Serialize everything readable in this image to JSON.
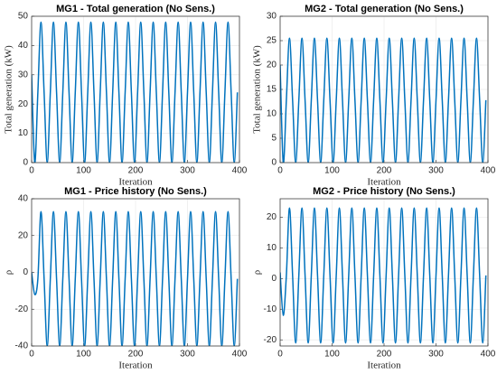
{
  "chart_data": [
    {
      "type": "line",
      "title": "MG1 - Total generation (No Sens.)",
      "x_label": "Iteration",
      "y_label": "Total generation (kW)",
      "xlim": [
        0,
        400
      ],
      "xticks": [
        0,
        100,
        200,
        300,
        400
      ],
      "ylim": [
        0,
        50
      ],
      "yticks": [
        0,
        10,
        20,
        30,
        40,
        50
      ],
      "grid": true,
      "x": [
        0,
        6,
        12,
        18,
        24,
        30,
        36,
        42,
        48,
        54,
        60,
        66,
        72,
        78,
        84,
        90,
        96,
        102,
        108,
        114,
        120,
        126,
        132,
        138,
        144,
        150,
        156,
        162,
        168,
        174,
        180,
        186,
        192,
        198,
        204,
        210,
        216,
        222,
        228,
        234,
        240,
        246,
        252,
        258,
        264,
        270,
        276,
        282,
        288,
        294,
        300,
        306,
        312,
        318,
        324,
        330,
        336,
        342,
        348,
        354,
        360,
        366,
        372,
        378,
        384,
        390,
        396
      ],
      "series": [
        {
          "name": "MG1",
          "color": "#0072bd",
          "values": [
            30,
            0,
            24,
            48,
            24,
            0,
            24,
            48,
            24,
            0,
            24,
            48,
            24,
            0,
            24,
            48,
            24,
            0,
            24,
            48,
            24,
            0,
            24,
            48,
            24,
            0,
            24,
            48,
            24,
            0,
            24,
            48,
            24,
            0,
            24,
            48,
            24,
            0,
            24,
            48,
            24,
            0,
            24,
            48,
            24,
            0,
            24,
            48,
            24,
            0,
            24,
            48,
            24,
            0,
            24,
            48,
            24,
            0,
            24,
            48,
            24,
            0,
            24,
            48,
            24,
            0,
            24
          ]
        }
      ]
    },
    {
      "type": "line",
      "title": "MG2 - Total generation (No Sens.)",
      "x_label": "Iteration",
      "y_label": "Total generation (kW)",
      "xlim": [
        0,
        400
      ],
      "xticks": [
        0,
        100,
        200,
        300,
        400
      ],
      "ylim": [
        0,
        30
      ],
      "yticks": [
        0,
        5,
        10,
        15,
        20,
        25,
        30
      ],
      "grid": true,
      "x": [
        0,
        6,
        12,
        18,
        24,
        30,
        36,
        42,
        48,
        54,
        60,
        66,
        72,
        78,
        84,
        90,
        96,
        102,
        108,
        114,
        120,
        126,
        132,
        138,
        144,
        150,
        156,
        162,
        168,
        174,
        180,
        186,
        192,
        198,
        204,
        210,
        216,
        222,
        228,
        234,
        240,
        246,
        252,
        258,
        264,
        270,
        276,
        282,
        288,
        294,
        300,
        306,
        312,
        318,
        324,
        330,
        336,
        342,
        348,
        354,
        360,
        366,
        372,
        378,
        384,
        390,
        396
      ],
      "series": [
        {
          "name": "MG2",
          "color": "#0072bd",
          "values": [
            20,
            0,
            12.8,
            25.5,
            12.8,
            0,
            12.8,
            25.5,
            12.8,
            0,
            12.8,
            25.5,
            12.8,
            0,
            12.8,
            25.5,
            12.8,
            0,
            12.8,
            25.5,
            12.8,
            0,
            12.8,
            25.5,
            12.8,
            0,
            12.8,
            25.5,
            12.8,
            0,
            12.8,
            25.5,
            12.8,
            0,
            12.8,
            25.5,
            12.8,
            0,
            12.8,
            25.5,
            12.8,
            0,
            12.8,
            25.5,
            12.8,
            0,
            12.8,
            25.5,
            12.8,
            0,
            12.8,
            25.5,
            12.8,
            0,
            12.8,
            25.5,
            12.8,
            0,
            12.8,
            25.5,
            12.8,
            0,
            12.8,
            25.5,
            12.8,
            0,
            12.8
          ]
        }
      ]
    },
    {
      "type": "line",
      "title": "MG1 - Price history (No Sens.)",
      "x_label": "Iteration",
      "y_label": "ρ",
      "xlim": [
        0,
        400
      ],
      "xticks": [
        0,
        100,
        200,
        300,
        400
      ],
      "ylim": [
        -40,
        40
      ],
      "yticks": [
        -40,
        -20,
        0,
        20,
        40
      ],
      "grid": true,
      "x": [
        0,
        6,
        12,
        18,
        24,
        30,
        36,
        42,
        48,
        54,
        60,
        66,
        72,
        78,
        84,
        90,
        96,
        102,
        108,
        114,
        120,
        126,
        132,
        138,
        144,
        150,
        156,
        162,
        168,
        174,
        180,
        186,
        192,
        198,
        204,
        210,
        216,
        222,
        228,
        234,
        240,
        246,
        252,
        258,
        264,
        270,
        276,
        282,
        288,
        294,
        300,
        306,
        312,
        318,
        324,
        330,
        336,
        342,
        348,
        354,
        360,
        366,
        372,
        378,
        384,
        390,
        396
      ],
      "series": [
        {
          "name": "MG1",
          "color": "#0072bd",
          "values": [
            0,
            -12,
            -3.5,
            33,
            -3.5,
            -40,
            -3.5,
            33,
            -3.5,
            -40,
            -3.5,
            33,
            -3.5,
            -40,
            -3.5,
            33,
            -3.5,
            -40,
            -3.5,
            33,
            -3.5,
            -40,
            -3.5,
            33,
            -3.5,
            -40,
            -3.5,
            33,
            -3.5,
            -40,
            -3.5,
            33,
            -3.5,
            -40,
            -3.5,
            33,
            -3.5,
            -40,
            -3.5,
            33,
            -3.5,
            -40,
            -3.5,
            33,
            -3.5,
            -40,
            -3.5,
            33,
            -3.5,
            -40,
            -3.5,
            33,
            -3.5,
            -40,
            -3.5,
            33,
            -3.5,
            -40,
            -3.5,
            33,
            -3.5,
            -40,
            -3.5,
            33,
            -3.5,
            -40,
            -3.5
          ]
        }
      ]
    },
    {
      "type": "line",
      "title": "MG2 - Price history (No Sens.)",
      "x_label": "Iteration",
      "y_label": "ρ",
      "xlim": [
        0,
        400
      ],
      "xticks": [
        0,
        100,
        200,
        300,
        400
      ],
      "ylim": [
        -22,
        26
      ],
      "yticks": [
        -20,
        -10,
        0,
        10,
        20
      ],
      "grid": true,
      "x": [
        0,
        6,
        12,
        18,
        24,
        30,
        36,
        42,
        48,
        54,
        60,
        66,
        72,
        78,
        84,
        90,
        96,
        102,
        108,
        114,
        120,
        126,
        132,
        138,
        144,
        150,
        156,
        162,
        168,
        174,
        180,
        186,
        192,
        198,
        204,
        210,
        216,
        222,
        228,
        234,
        240,
        246,
        252,
        258,
        264,
        270,
        276,
        282,
        288,
        294,
        300,
        306,
        312,
        318,
        324,
        330,
        336,
        342,
        348,
        354,
        360,
        366,
        372,
        378,
        384,
        390,
        396
      ],
      "series": [
        {
          "name": "MG2",
          "color": "#0072bd",
          "values": [
            2,
            -12,
            1,
            23,
            1,
            -21,
            1,
            23,
            1,
            -21,
            1,
            23,
            1,
            -21,
            1,
            23,
            1,
            -21,
            1,
            23,
            1,
            -21,
            1,
            23,
            1,
            -21,
            1,
            23,
            1,
            -21,
            1,
            23,
            1,
            -21,
            1,
            23,
            1,
            -21,
            1,
            23,
            1,
            -21,
            1,
            23,
            1,
            -21,
            1,
            23,
            1,
            -21,
            1,
            23,
            1,
            -21,
            1,
            23,
            1,
            -21,
            1,
            23,
            1,
            -21,
            1,
            23,
            1,
            -21,
            1
          ]
        }
      ]
    }
  ]
}
